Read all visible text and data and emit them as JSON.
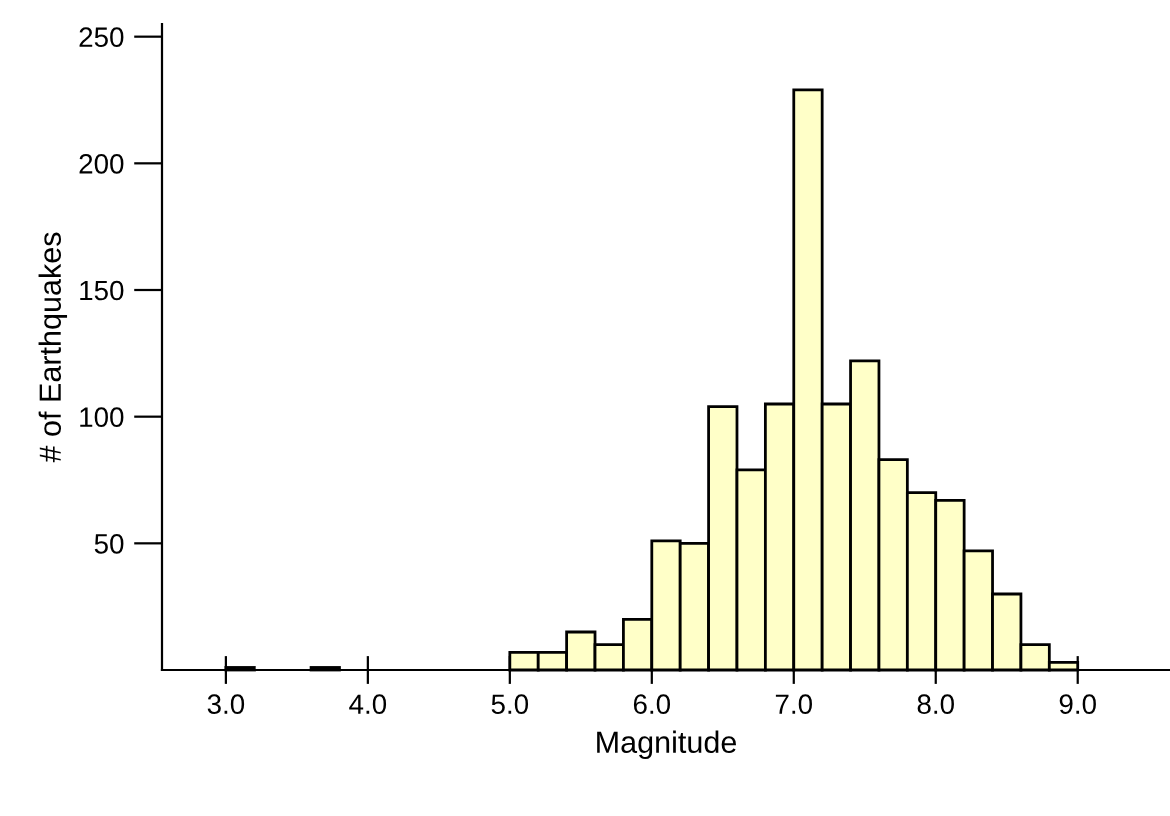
{
  "chart_data": {
    "type": "histogram",
    "xlabel": "Magnitude",
    "ylabel": "# of Earthquakes",
    "bins": [
      3.0,
      3.2,
      3.4,
      3.6,
      3.8,
      4.0,
      4.2,
      4.4,
      4.6,
      4.8,
      5.0,
      5.2,
      5.4,
      5.6,
      5.8,
      6.0,
      6.2,
      6.4,
      6.6,
      6.8,
      7.0,
      7.2,
      7.4,
      7.6,
      7.8,
      8.0,
      8.2,
      8.4,
      8.6,
      8.8,
      9.0
    ],
    "values": [
      1,
      0,
      0,
      1,
      0,
      0,
      0,
      0,
      0,
      0,
      7,
      7,
      15,
      10,
      20,
      51,
      50,
      104,
      79,
      105,
      229,
      105,
      122,
      83,
      70,
      67,
      47,
      30,
      10,
      3
    ],
    "color": "#ffffc8",
    "xlim": [
      2.55,
      9.65
    ],
    "ylim": [
      0,
      255
    ],
    "xticks": [
      {
        "value": 3,
        "label": "3.0"
      },
      {
        "value": 4,
        "label": "4.0"
      },
      {
        "value": 5,
        "label": "5.0"
      },
      {
        "value": 6,
        "label": "6.0"
      },
      {
        "value": 7,
        "label": "7.0"
      },
      {
        "value": 8,
        "label": "8.0"
      },
      {
        "value": 9,
        "label": "9.0"
      }
    ],
    "yticks": [
      50,
      100,
      150,
      200,
      250
    ],
    "grid": false,
    "legend": false
  }
}
